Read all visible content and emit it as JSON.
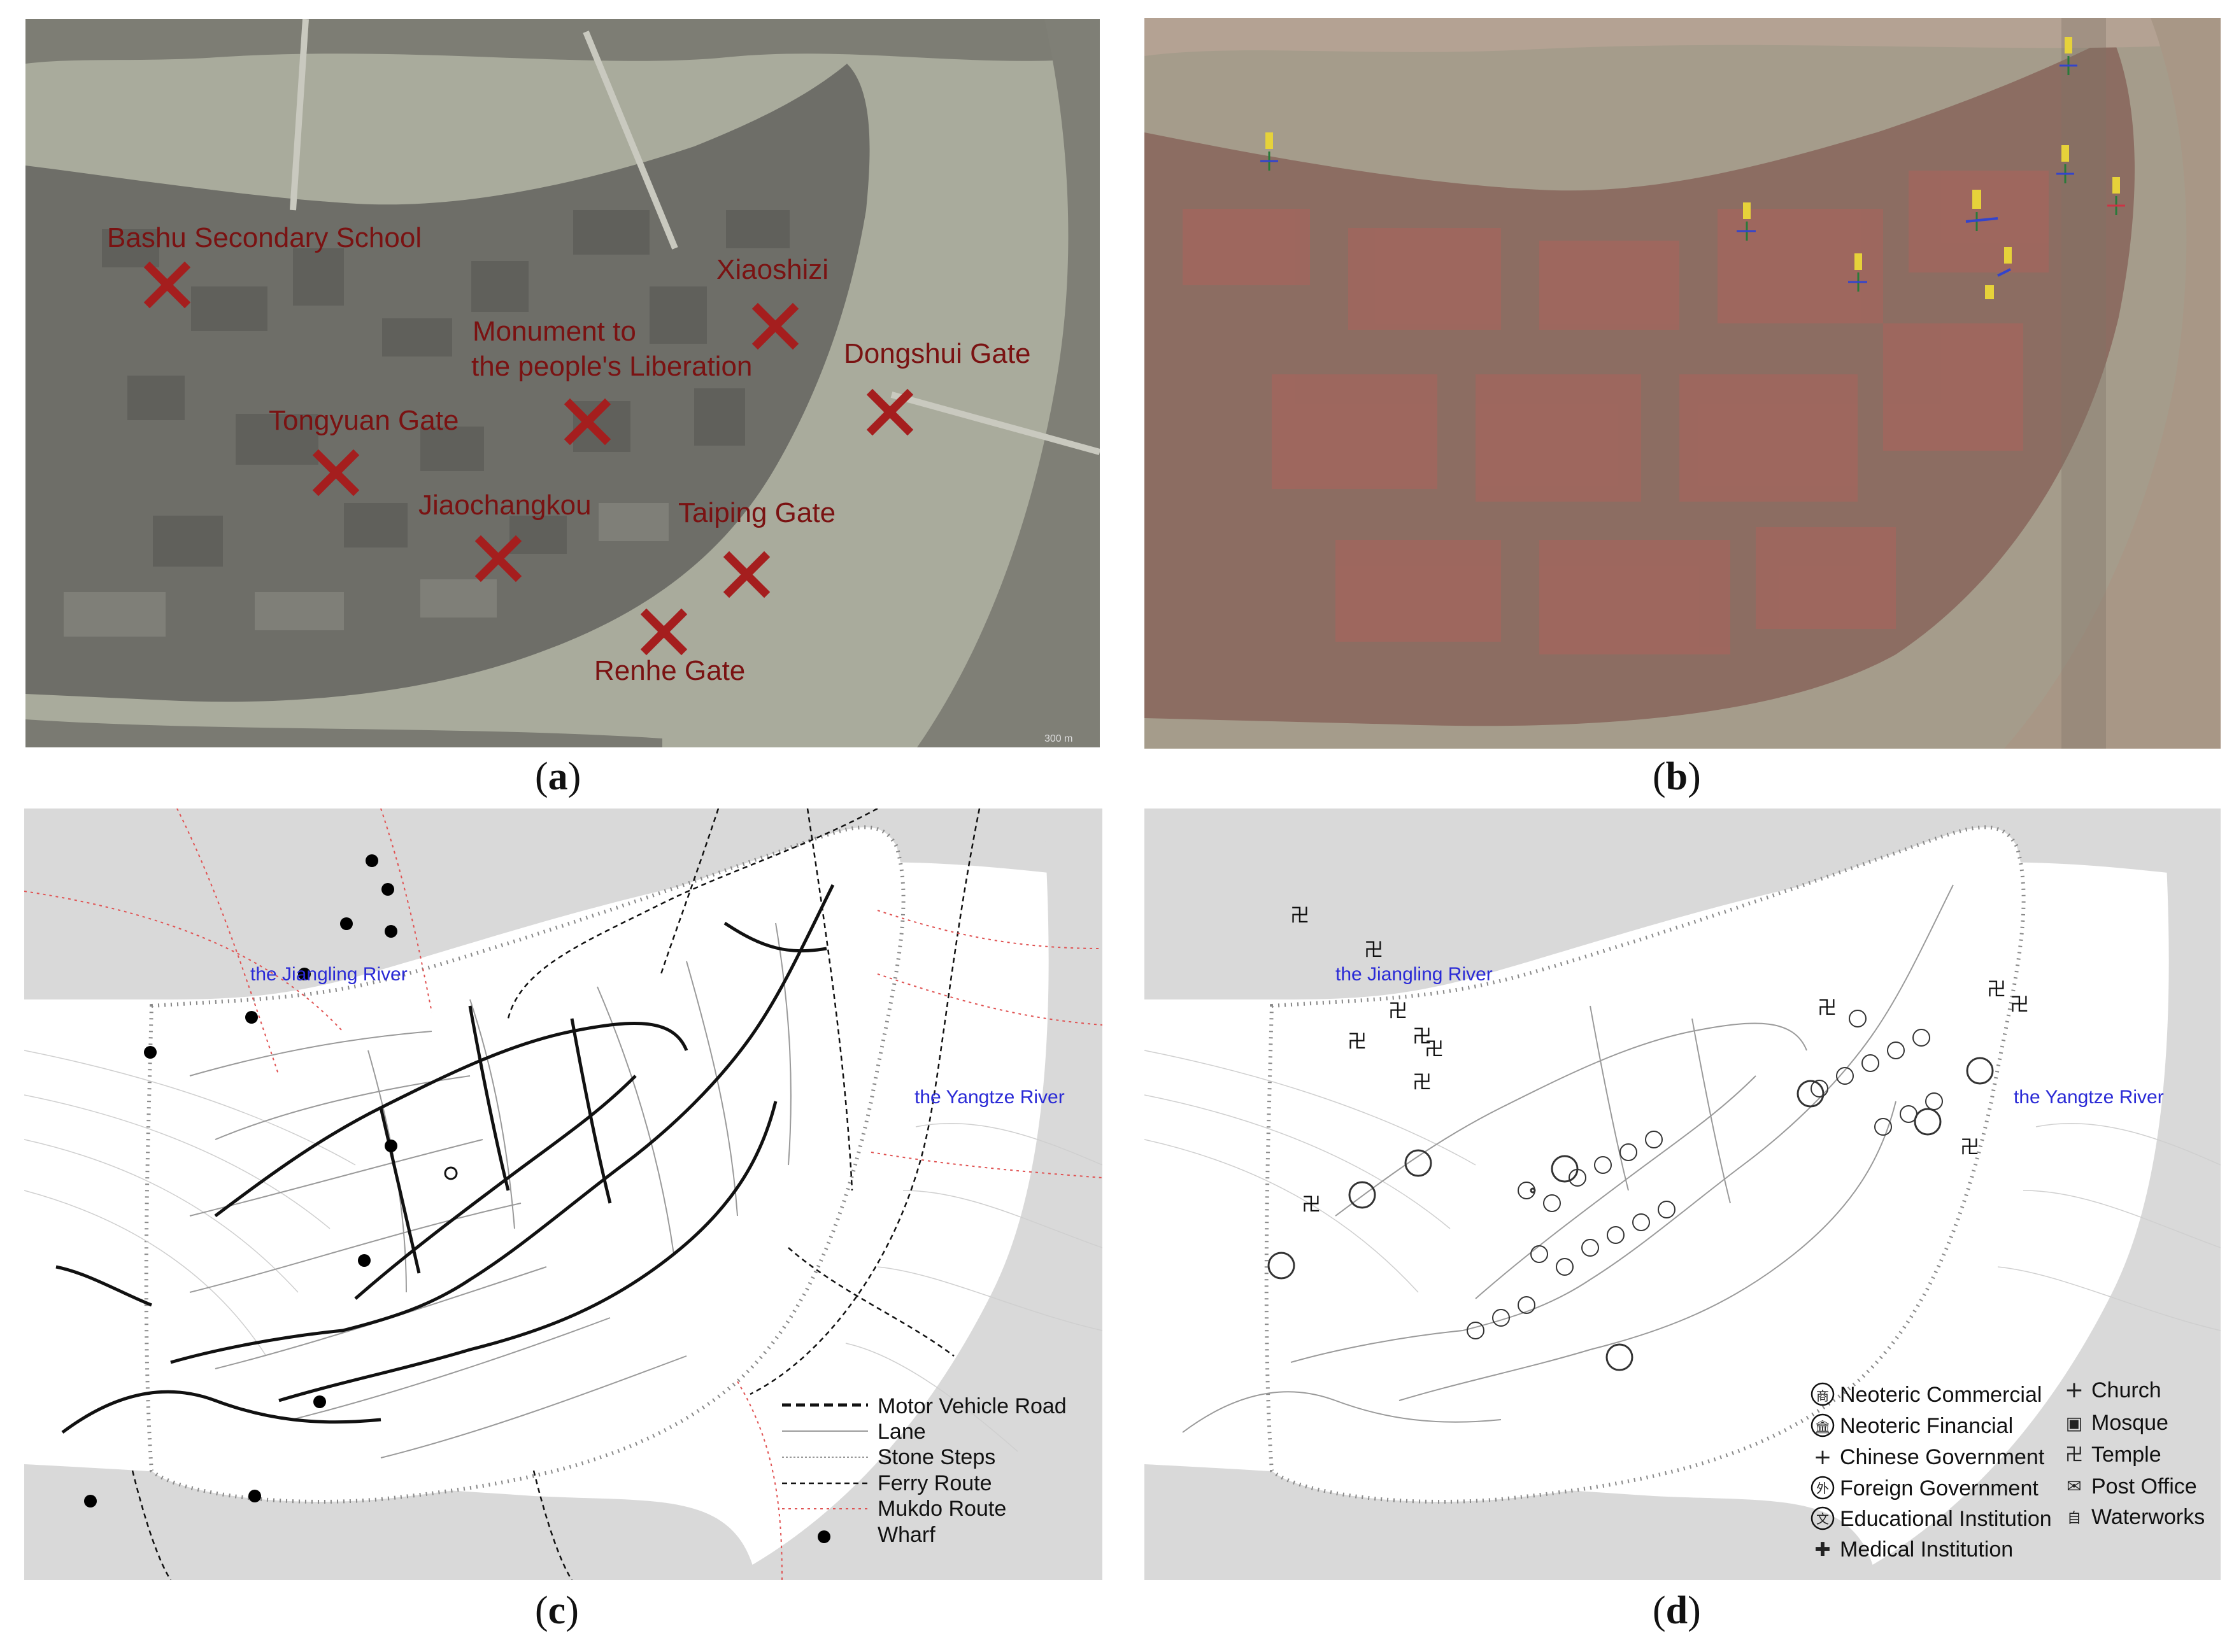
{
  "panels": {
    "a": {
      "caption": "a",
      "places": [
        {
          "name": "Bashu Secondary School"
        },
        {
          "name": "Xiaoshizi"
        },
        {
          "name": "Monument to"
        },
        {
          "name": "the people's Liberation"
        },
        {
          "name": "Dongshui Gate"
        },
        {
          "name": "Tongyuan Gate"
        },
        {
          "name": "Jiaochangkou"
        },
        {
          "name": "Taiping Gate"
        },
        {
          "name": "Renhe Gate"
        }
      ],
      "scale_text": "300 m"
    },
    "b": {
      "caption": "b"
    },
    "c": {
      "caption": "c",
      "rivers": {
        "jiangling": "the Jiangling River",
        "yangtze": "the Yangtze River"
      },
      "legend": [
        {
          "label": "Motor Vehicle Road"
        },
        {
          "label": "Lane"
        },
        {
          "label": "Stone Steps"
        },
        {
          "label": "Ferry Route"
        },
        {
          "label": "Mukdo  Route"
        },
        {
          "label": "Wharf"
        }
      ]
    },
    "d": {
      "caption": "d",
      "rivers": {
        "jiangling": "the Jiangling River",
        "yangtze": "the Yangtze River"
      },
      "legend_left": [
        {
          "glyph": "商",
          "label": "Neoteric Commercial"
        },
        {
          "glyph": "🏛",
          "label": "Neoteric Financial"
        },
        {
          "glyph": "+",
          "label": "Chinese Government"
        },
        {
          "glyph": "外",
          "label": "Foreign Government"
        },
        {
          "glyph": "文",
          "label": "Educational Institution"
        },
        {
          "glyph": "✚",
          "label": "Medical Institution"
        }
      ],
      "legend_right": [
        {
          "glyph": "+",
          "label": "Church"
        },
        {
          "glyph": "▣",
          "label": "Mosque"
        },
        {
          "glyph": "卍",
          "label": "Temple"
        },
        {
          "glyph": "✉",
          "label": "Post Office"
        },
        {
          "glyph": "自",
          "label": "Waterworks"
        }
      ]
    }
  }
}
